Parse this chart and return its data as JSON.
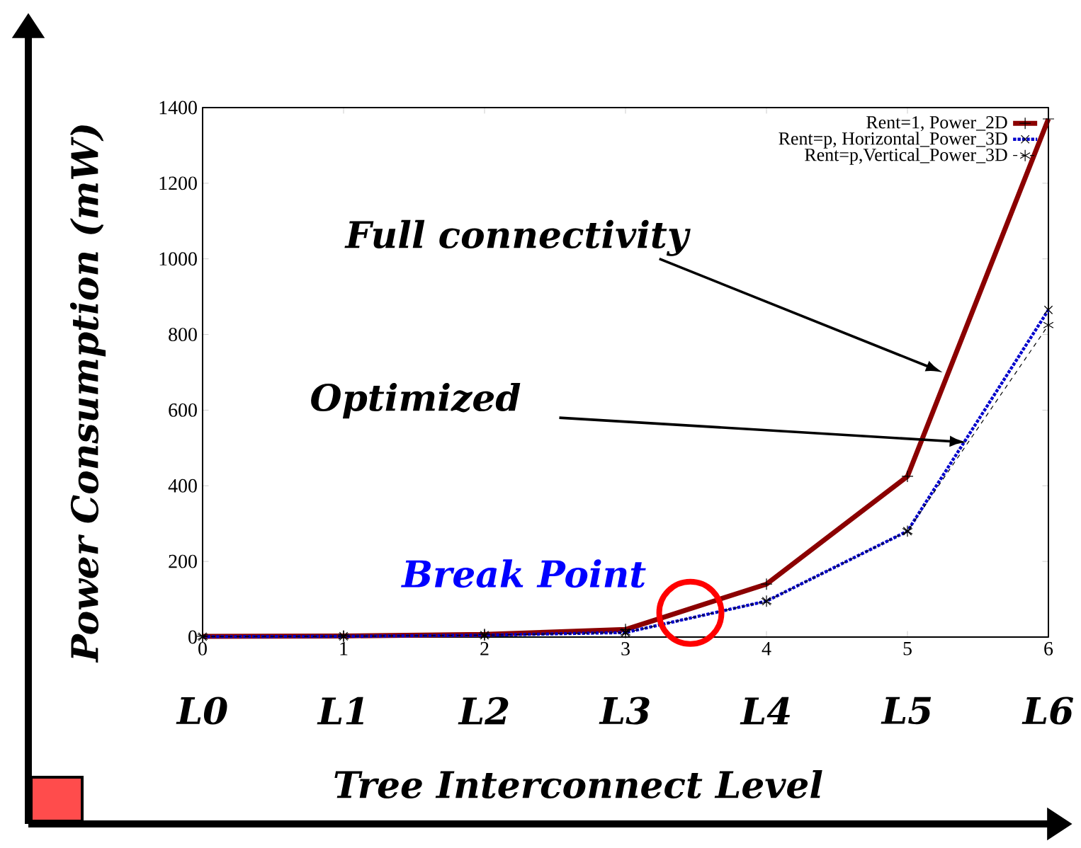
{
  "chart_data": {
    "type": "line",
    "xlabel": "Tree Interconnect Level",
    "ylabel": "Power Consumption (mW)",
    "x": [
      0,
      1,
      2,
      3,
      4,
      5,
      6
    ],
    "xlim": [
      0,
      6
    ],
    "xticks": [
      0,
      1,
      2,
      3,
      4,
      5,
      6
    ],
    "ylim": [
      0,
      1400
    ],
    "yticks": [
      0,
      200,
      400,
      600,
      800,
      1000,
      1200,
      1400
    ],
    "series": [
      {
        "name": "Rent=1, Power_2D",
        "color": "#8b0000",
        "marker": "cross",
        "line_style": "solid",
        "values": [
          2,
          3,
          7,
          20,
          140,
          425,
          1370
        ]
      },
      {
        "name": "Rent=p, Horizontal_Power_3D",
        "color": "#0000cc",
        "marker": "cross",
        "line_style": "dotted",
        "values": [
          1,
          2,
          5,
          12,
          95,
          280,
          865
        ]
      },
      {
        "name": "Rent=p,Vertical_Power_3D",
        "color": "#000000",
        "marker": "cross",
        "line_style": "dashed",
        "values": [
          1,
          2,
          5,
          12,
          95,
          280,
          825
        ]
      }
    ],
    "annotations": [
      "Full connectivity",
      "Optimized",
      {
        "text": "Break Point",
        "x": 3.46,
        "y": 64
      },
      "L0",
      "L1",
      "L2",
      "L3",
      "L4",
      "L5",
      "L6"
    ],
    "legend": "top right",
    "grid": false
  }
}
